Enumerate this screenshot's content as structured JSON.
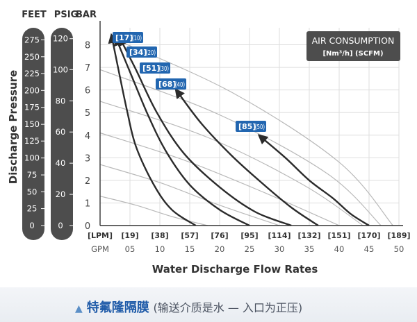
{
  "colors": {
    "background": "#ffffff",
    "scale_bar": "#4d4d4d",
    "tag_fill": "#2266b0",
    "curve": "#2b2b2b",
    "air_line": "#b9b9b9",
    "grid": "#dedede",
    "caption_main": "#1e5aa8"
  },
  "chart_data": {
    "type": "line",
    "title": "",
    "xlabel": "Water Discharge Flow Rates",
    "ylabel": "Discharge Pressure",
    "unit_headers": [
      "FEET",
      "PSIG",
      "BAR"
    ],
    "xlim": [
      0,
      50
    ],
    "ylim": [
      0,
      8.6
    ],
    "x_ticks_gpm": [
      "GPM",
      "05",
      "10",
      "15",
      "20",
      "25",
      "30",
      "35",
      "40",
      "45",
      "50"
    ],
    "x_ticks_lpm": [
      "[LPM]",
      "[19]",
      "[38]",
      "[57]",
      "[76]",
      "[95]",
      "[114]",
      "[132]",
      "[151]",
      "[170]",
      "[189]"
    ],
    "y_ticks_bar": [
      {
        "label": "0",
        "value": 0
      },
      {
        "label": "1",
        "value": 1
      },
      {
        "label": "2",
        "value": 2
      },
      {
        "label": "3",
        "value": 3
      },
      {
        "label": "4",
        "value": 4
      },
      {
        "label": "5",
        "value": 5
      },
      {
        "label": "6",
        "value": 6
      },
      {
        "label": "7",
        "value": 7
      },
      {
        "label": "8",
        "value": 8
      }
    ],
    "y_ticks_psig": [
      {
        "label": "0",
        "value": 0
      },
      {
        "label": "20",
        "value": 1.38
      },
      {
        "label": "40",
        "value": 2.76
      },
      {
        "label": "60",
        "value": 4.14
      },
      {
        "label": "80",
        "value": 5.52
      },
      {
        "label": "100",
        "value": 6.9
      },
      {
        "label": "120",
        "value": 8.27
      }
    ],
    "y_ticks_feet": [
      {
        "label": "0",
        "value": 0
      },
      {
        "label": "25",
        "value": 0.75
      },
      {
        "label": "50",
        "value": 1.49
      },
      {
        "label": "75",
        "value": 2.24
      },
      {
        "label": "100",
        "value": 2.99
      },
      {
        "label": "125",
        "value": 3.74
      },
      {
        "label": "150",
        "value": 4.48
      },
      {
        "label": "175",
        "value": 5.23
      },
      {
        "label": "200",
        "value": 5.98
      },
      {
        "label": "225",
        "value": 6.73
      },
      {
        "label": "250",
        "value": 7.47
      },
      {
        "label": "275",
        "value": 8.22
      }
    ],
    "legend_box": {
      "title": "AIR CONSUMPTION",
      "unit": "[Nm³/h] (SCFM)",
      "placement": "top-right"
    },
    "series": [
      {
        "name": "[17] (10)",
        "label_bracket": "[17]",
        "label_paren": "(10)",
        "x": [
          2,
          3,
          4.5,
          6,
          9,
          12,
          16
        ],
        "y": [
          8.3,
          7.0,
          5.1,
          3.5,
          1.8,
          0.7,
          0
        ]
      },
      {
        "name": "[34] (20)",
        "label_bracket": "[34]",
        "label_paren": "(20)",
        "x": [
          2.8,
          5,
          8,
          11,
          15,
          20,
          25
        ],
        "y": [
          8.2,
          6.8,
          4.9,
          3.3,
          1.8,
          0.7,
          0
        ]
      },
      {
        "name": "[51] (30)",
        "label_bracket": "[51]",
        "label_paren": "(30)",
        "x": [
          3.5,
          6,
          9.5,
          14,
          20,
          26,
          32
        ],
        "y": [
          8.2,
          6.9,
          5.0,
          3.2,
          1.7,
          0.6,
          0
        ]
      },
      {
        "name": "[68] (40)",
        "label_bracket": "[68]",
        "label_paren": "(40)",
        "x": [
          13,
          17,
          22,
          27,
          32,
          36.5
        ],
        "y": [
          5.9,
          4.5,
          3.1,
          1.9,
          0.8,
          0
        ]
      },
      {
        "name": "[85] (50)",
        "label_bracket": "[85]",
        "label_paren": "(50)",
        "x": [
          27,
          31,
          35,
          39,
          42,
          45
        ],
        "y": [
          3.9,
          3.0,
          2.0,
          1.2,
          0.5,
          0
        ]
      }
    ],
    "air_lines": [
      {
        "x": [
          0,
          6,
          12,
          18
        ],
        "y": [
          1.3,
          0.9,
          0.4,
          0
        ]
      },
      {
        "x": [
          0,
          10,
          20,
          30
        ],
        "y": [
          2.7,
          1.9,
          0.9,
          0
        ]
      },
      {
        "x": [
          0,
          14,
          28,
          40
        ],
        "y": [
          4.1,
          2.9,
          1.4,
          0
        ]
      },
      {
        "x": [
          0,
          18,
          34,
          44
        ],
        "y": [
          5.5,
          3.9,
          1.8,
          0
        ]
      },
      {
        "x": [
          0,
          20,
          38,
          47
        ],
        "y": [
          6.9,
          4.9,
          2.3,
          0
        ]
      },
      {
        "x": [
          2,
          22,
          40,
          49
        ],
        "y": [
          8.3,
          5.9,
          2.8,
          0
        ]
      }
    ]
  },
  "caption": {
    "main": "特氟隆隔膜",
    "sub": "(输送介质是水 — 入口为正压)"
  }
}
